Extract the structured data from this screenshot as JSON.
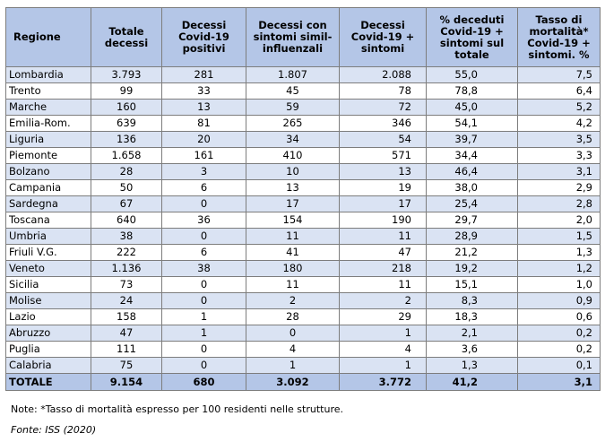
{
  "table": {
    "headers": [
      "Regione",
      "Totale decessi",
      "Decessi Covid-19 positivi",
      "Decessi con sintomi simil-influenzali",
      "Decessi Covid-19 + sintomi",
      "% deceduti Covid-19 + sintomi sul totale",
      "Tasso di mortalità* Covid-19 + sintomi. %"
    ],
    "rows": [
      [
        "Lombardia",
        "3.793",
        "281",
        "1.807",
        "2.088",
        "55,0",
        "7,5"
      ],
      [
        "Trento",
        "99",
        "33",
        "45",
        "78",
        "78,8",
        "6,4"
      ],
      [
        "Marche",
        "160",
        "13",
        "59",
        "72",
        "45,0",
        "5,2"
      ],
      [
        "Emilia-Rom.",
        "639",
        "81",
        "265",
        "346",
        "54,1",
        "4,2"
      ],
      [
        "Liguria",
        "136",
        "20",
        "34",
        "54",
        "39,7",
        "3,5"
      ],
      [
        "Piemonte",
        "1.658",
        "161",
        "410",
        "571",
        "34,4",
        "3,3"
      ],
      [
        "Bolzano",
        "28",
        "3",
        "10",
        "13",
        "46,4",
        "3,1"
      ],
      [
        "Campania",
        "50",
        "6",
        "13",
        "19",
        "38,0",
        "2,9"
      ],
      [
        "Sardegna",
        "67",
        "0",
        "17",
        "17",
        "25,4",
        "2,8"
      ],
      [
        "Toscana",
        "640",
        "36",
        "154",
        "190",
        "29,7",
        "2,0"
      ],
      [
        "Umbria",
        "38",
        "0",
        "11",
        "11",
        "28,9",
        "1,5"
      ],
      [
        "Friuli V.G.",
        "222",
        "6",
        "41",
        "47",
        "21,2",
        "1,3"
      ],
      [
        "Veneto",
        "1.136",
        "38",
        "180",
        "218",
        "19,2",
        "1,2"
      ],
      [
        "Sicilia",
        "73",
        "0",
        "11",
        "11",
        "15,1",
        "1,0"
      ],
      [
        "Molise",
        "24",
        "0",
        "2",
        "2",
        "8,3",
        "0,9"
      ],
      [
        "Lazio",
        "158",
        "1",
        "28",
        "29",
        "18,3",
        "0,6"
      ],
      [
        "Abruzzo",
        "47",
        "1",
        "0",
        "1",
        "2,1",
        "0,2"
      ],
      [
        "Puglia",
        "111",
        "0",
        "4",
        "4",
        "3,6",
        "0,2"
      ],
      [
        "Calabria",
        "75",
        "0",
        "1",
        "1",
        "1,3",
        "0,1"
      ]
    ],
    "total": [
      "TOTALE",
      "9.154",
      "680",
      "3.092",
      "3.772",
      "41,2",
      "3,1"
    ]
  },
  "note": "Note: *Tasso di mortalità espresso per 100 residenti nelle strutture.",
  "source": "Fonte: ISS (2020)",
  "colors": {
    "header_bg": "#b4c6e7",
    "row_band": "#dae3f3",
    "border": "#7d7d7d"
  }
}
